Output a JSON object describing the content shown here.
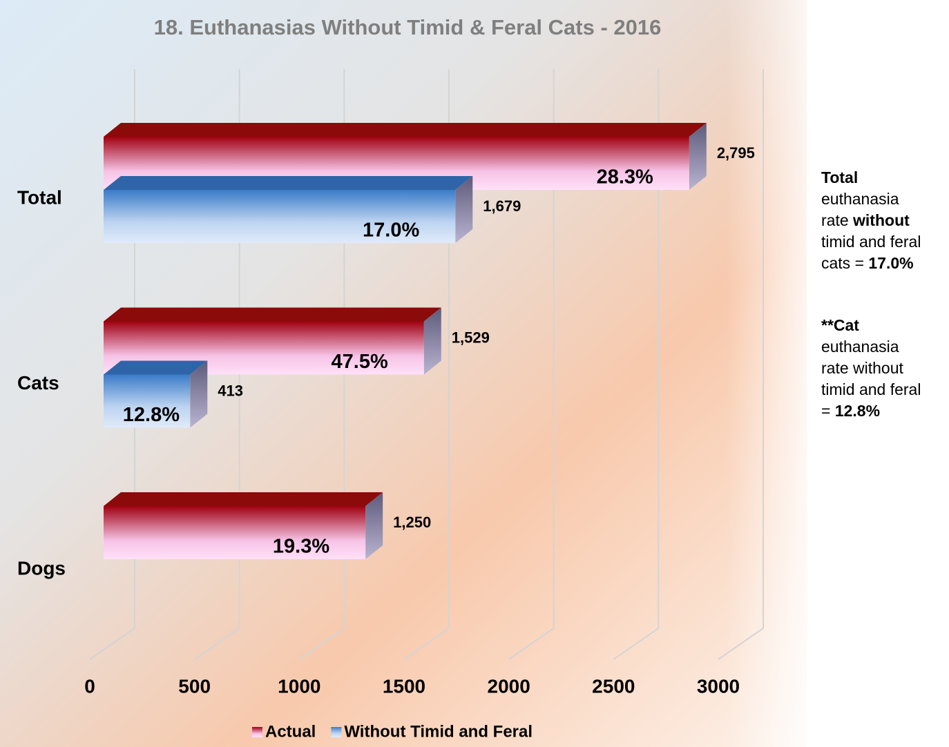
{
  "chart_data": {
    "type": "bar3d_horizontal",
    "title": "18. Euthanasias Without Timid & Feral Cats - 2016",
    "categories": [
      "Total",
      "Cats",
      "Dogs"
    ],
    "series": [
      {
        "name": "Actual",
        "color": "#8b0000",
        "values": [
          2795,
          1529,
          1250
        ],
        "value_labels": [
          "2,795",
          "1,529",
          "1,250"
        ],
        "percent_labels": [
          "28.3%",
          "47.5%",
          "19.3%"
        ]
      },
      {
        "name": "Without Timid and Feral",
        "color": "#3a7bc8",
        "values": [
          1679,
          413,
          null
        ],
        "value_labels": [
          "1,679",
          "413",
          null
        ],
        "percent_labels": [
          "17.0%",
          "12.8%",
          null
        ]
      }
    ],
    "xlim": [
      0,
      3000
    ],
    "xticks": [
      0,
      500,
      1000,
      1500,
      2000,
      2500,
      3000
    ],
    "grid": true,
    "legend": "bottom"
  },
  "notes": [
    {
      "lines": [
        [
          {
            "text": "Total",
            "bold": true
          }
        ],
        [
          {
            "text": "euthanasia",
            "bold": false
          }
        ],
        [
          {
            "text": "rate ",
            "bold": false
          },
          {
            "text": "without",
            "bold": true
          }
        ],
        [
          {
            "text": "timid and feral",
            "bold": false
          }
        ],
        [
          {
            "text": "cats = ",
            "bold": false
          },
          {
            "text": "17.0%",
            "bold": true
          }
        ]
      ]
    },
    {
      "lines": [
        [
          {
            "text": "**Cat",
            "bold": true
          }
        ],
        [
          {
            "text": "euthanasia",
            "bold": false
          }
        ],
        [
          {
            "text": "rate without",
            "bold": false
          }
        ],
        [
          {
            "text": "timid and feral",
            "bold": false
          }
        ],
        [
          {
            "text": "= ",
            "bold": false
          },
          {
            "text": "12.8%",
            "bold": true
          }
        ]
      ]
    }
  ]
}
